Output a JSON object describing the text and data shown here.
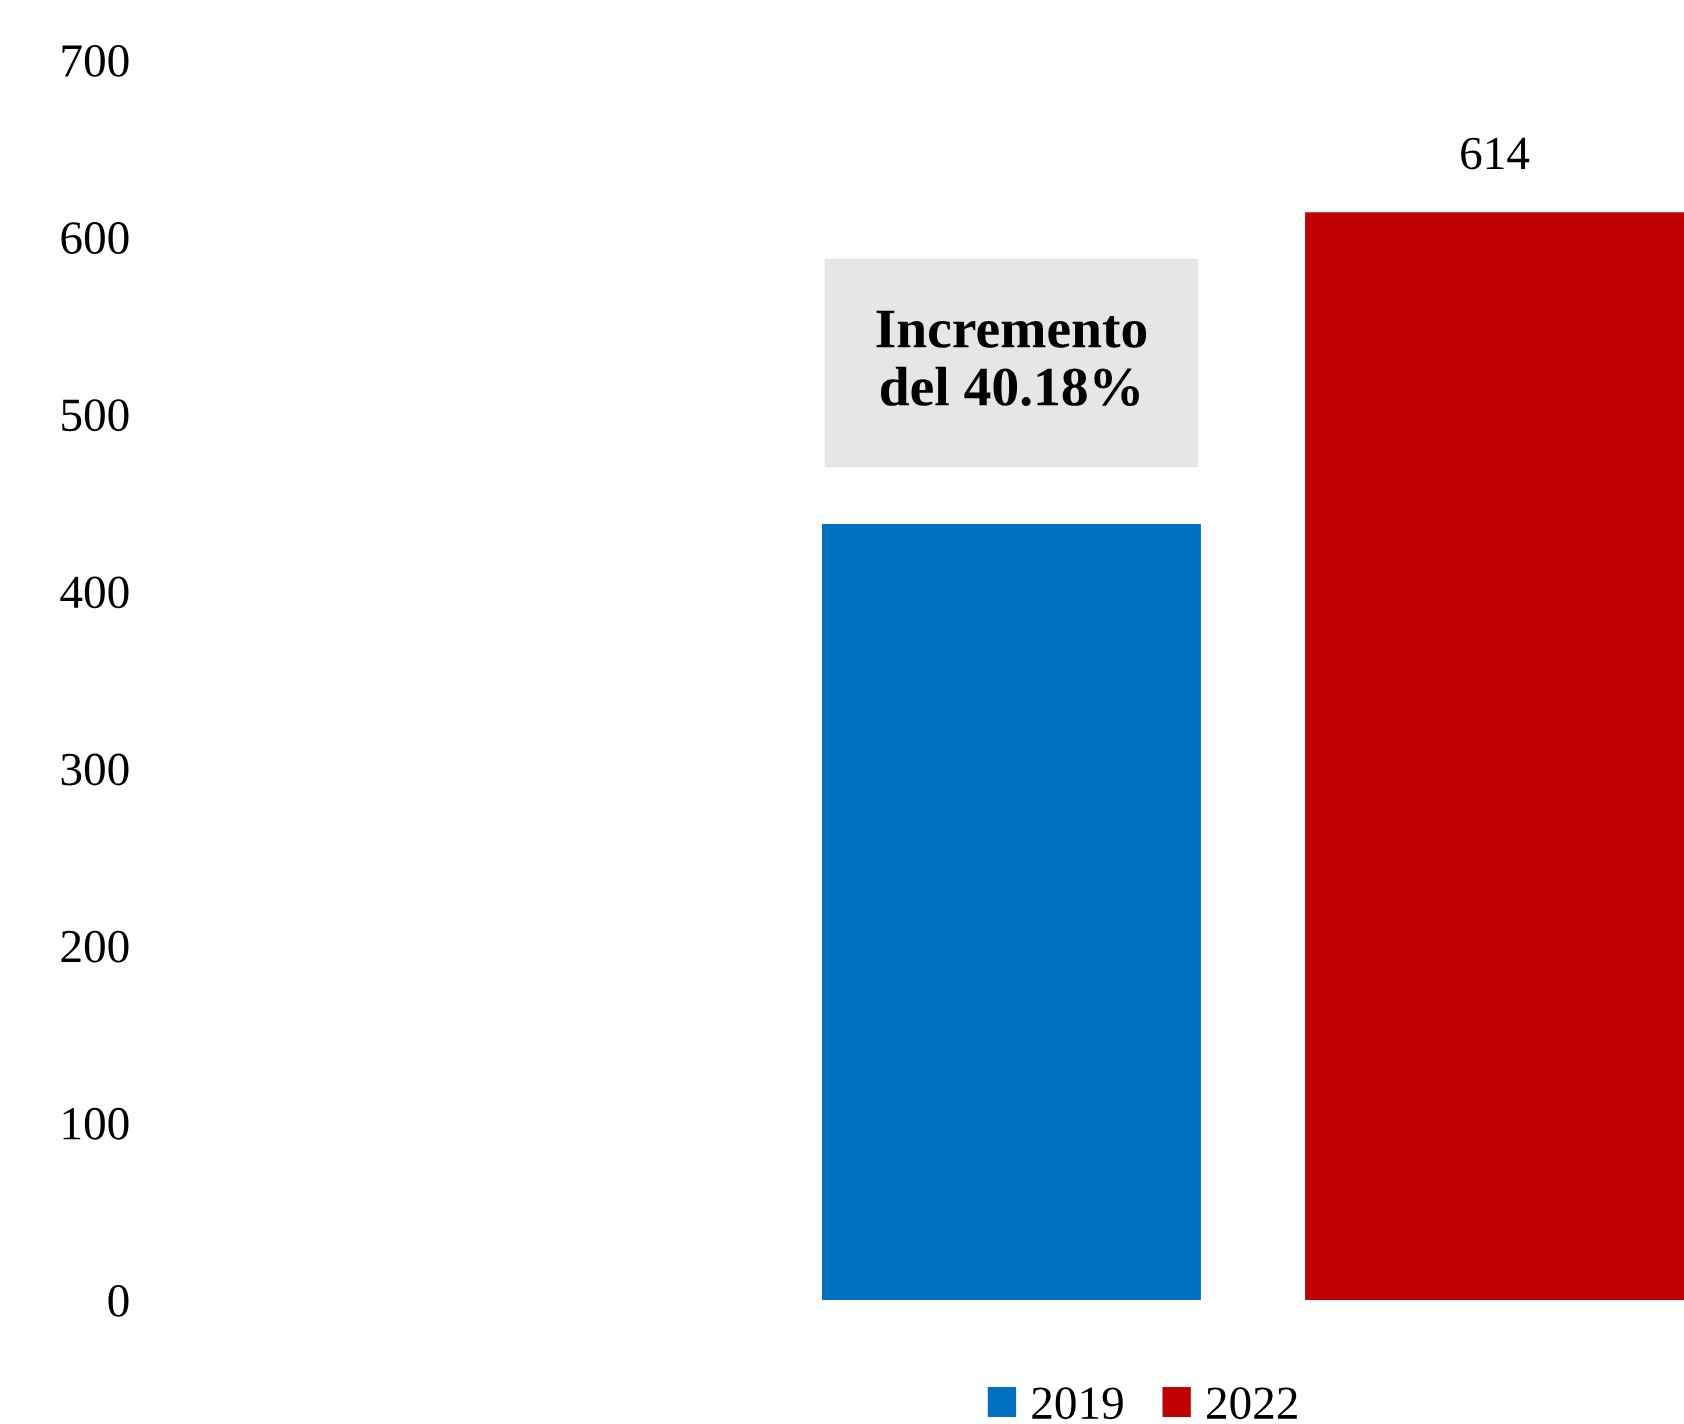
{
  "chart_data": {
    "type": "bar",
    "categories": [
      null
    ],
    "series": [
      {
        "name": "2019",
        "color": "#0070c0",
        "values": [
          438
        ],
        "value_labels": [
          null
        ]
      },
      {
        "name": "2022",
        "color": "#c00000",
        "values": [
          614
        ],
        "value_labels": [
          "614"
        ]
      }
    ],
    "ylim": [
      0,
      700
    ],
    "yticks": [
      0,
      100,
      200,
      300,
      400,
      500,
      600,
      700
    ],
    "grid": false,
    "legend": "bottom",
    "annotations": [
      "Incremento\ndel 40.18%"
    ]
  }
}
